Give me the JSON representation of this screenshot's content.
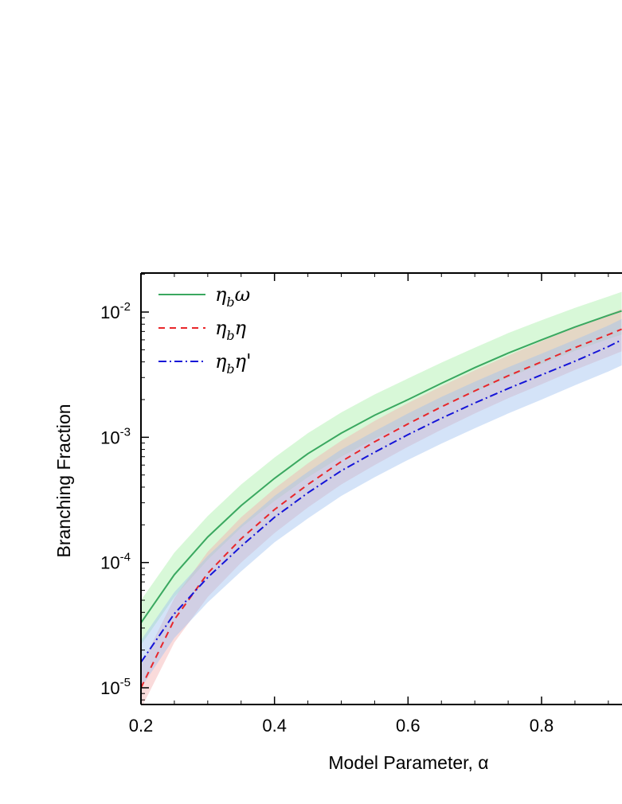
{
  "chart_data": {
    "type": "line",
    "xlabel": "Model Parameter,  α",
    "ylabel": "Branching Fraction",
    "xlim": [
      0.2,
      0.92
    ],
    "ylim": [
      6.5e-06,
      0.02
    ],
    "yscale": "log",
    "grid": false,
    "legend_position": "top-left",
    "x_ticks": [
      {
        "value": 0.2,
        "label": "0.2"
      },
      {
        "value": 0.4,
        "label": "0.4"
      },
      {
        "value": 0.6,
        "label": "0.6"
      },
      {
        "value": 0.8,
        "label": "0.8"
      }
    ],
    "y_ticks": [
      {
        "value": 1e-05,
        "base": "10",
        "exp": "-5"
      },
      {
        "value": 0.0001,
        "base": "10",
        "exp": "-4"
      },
      {
        "value": 0.001,
        "base": "10",
        "exp": "-3"
      },
      {
        "value": 0.01,
        "base": "10",
        "exp": "-2"
      }
    ],
    "x": [
      0.2,
      0.25,
      0.3,
      0.35,
      0.4,
      0.45,
      0.5,
      0.55,
      0.6,
      0.65,
      0.7,
      0.75,
      0.8,
      0.85,
      0.9,
      0.92
    ],
    "series": [
      {
        "key": "omega",
        "legend": {
          "main": "η",
          "sub": "b",
          "tail": "ω"
        },
        "color": "#3aa860",
        "band_color": "#a8f0a8",
        "dash": "solid",
        "values": [
          3.3e-05,
          8e-05,
          0.00016,
          0.000285,
          0.00047,
          0.00074,
          0.00108,
          0.0015,
          0.002,
          0.0027,
          0.0036,
          0.0047,
          0.006,
          0.0076,
          0.0094,
          0.0102
        ],
        "lower": [
          2.2e-05,
          5.3e-05,
          0.000105,
          0.00019,
          0.00031,
          0.00048,
          0.0007,
          0.00097,
          0.0013,
          0.00175,
          0.0023,
          0.003,
          0.00385,
          0.0049,
          0.0061,
          0.0066
        ],
        "upper": [
          5e-05,
          0.00012,
          0.000235,
          0.00042,
          0.00069,
          0.00108,
          0.00158,
          0.0022,
          0.00295,
          0.00395,
          0.0052,
          0.0068,
          0.0086,
          0.0108,
          0.0133,
          0.0145
        ]
      },
      {
        "key": "eta",
        "legend": {
          "main": "η",
          "sub": "b",
          "tail": "η"
        },
        "color": "#e8262a",
        "band_color": "#f4b0b0",
        "dash": "dashed",
        "values": [
          1e-05,
          3.5e-05,
          8.2e-05,
          0.000155,
          0.000265,
          0.00042,
          0.00064,
          0.00092,
          0.00128,
          0.00175,
          0.00235,
          0.0031,
          0.004,
          0.0052,
          0.0066,
          0.0073
        ],
        "lower": [
          6.8e-06,
          2.3e-05,
          5.3e-05,
          0.0001,
          0.000172,
          0.000275,
          0.00042,
          0.0006,
          0.00084,
          0.00115,
          0.00155,
          0.00205,
          0.00265,
          0.00345,
          0.0044,
          0.00485
        ],
        "upper": [
          1.5e-05,
          5.2e-05,
          0.000122,
          0.00023,
          0.00039,
          0.00062,
          0.00094,
          0.00135,
          0.00188,
          0.00256,
          0.00343,
          0.0045,
          0.00585,
          0.00755,
          0.0096,
          0.0106
        ]
      },
      {
        "key": "etaprime",
        "legend": {
          "main": "η",
          "sub": "b",
          "tail": "η'"
        },
        "color": "#1414d8",
        "band_color": "#a0c0f0",
        "dash": "dashdot",
        "values": [
          1.6e-05,
          3.9e-05,
          7.6e-05,
          0.000135,
          0.00023,
          0.00036,
          0.00054,
          0.00076,
          0.00105,
          0.00142,
          0.00188,
          0.00245,
          0.00315,
          0.00405,
          0.0053,
          0.006
        ],
        "lower": [
          1e-05,
          2.5e-05,
          4.8e-05,
          8.5e-05,
          0.000145,
          0.000225,
          0.00034,
          0.00048,
          0.00066,
          0.00089,
          0.00118,
          0.00155,
          0.002,
          0.0026,
          0.00335,
          0.00375
        ],
        "upper": [
          2.4e-05,
          5.8e-05,
          0.000113,
          0.0002,
          0.00034,
          0.00053,
          0.0008,
          0.00112,
          0.00155,
          0.0021,
          0.00278,
          0.00362,
          0.00465,
          0.006,
          0.0078,
          0.0088
        ]
      }
    ]
  }
}
